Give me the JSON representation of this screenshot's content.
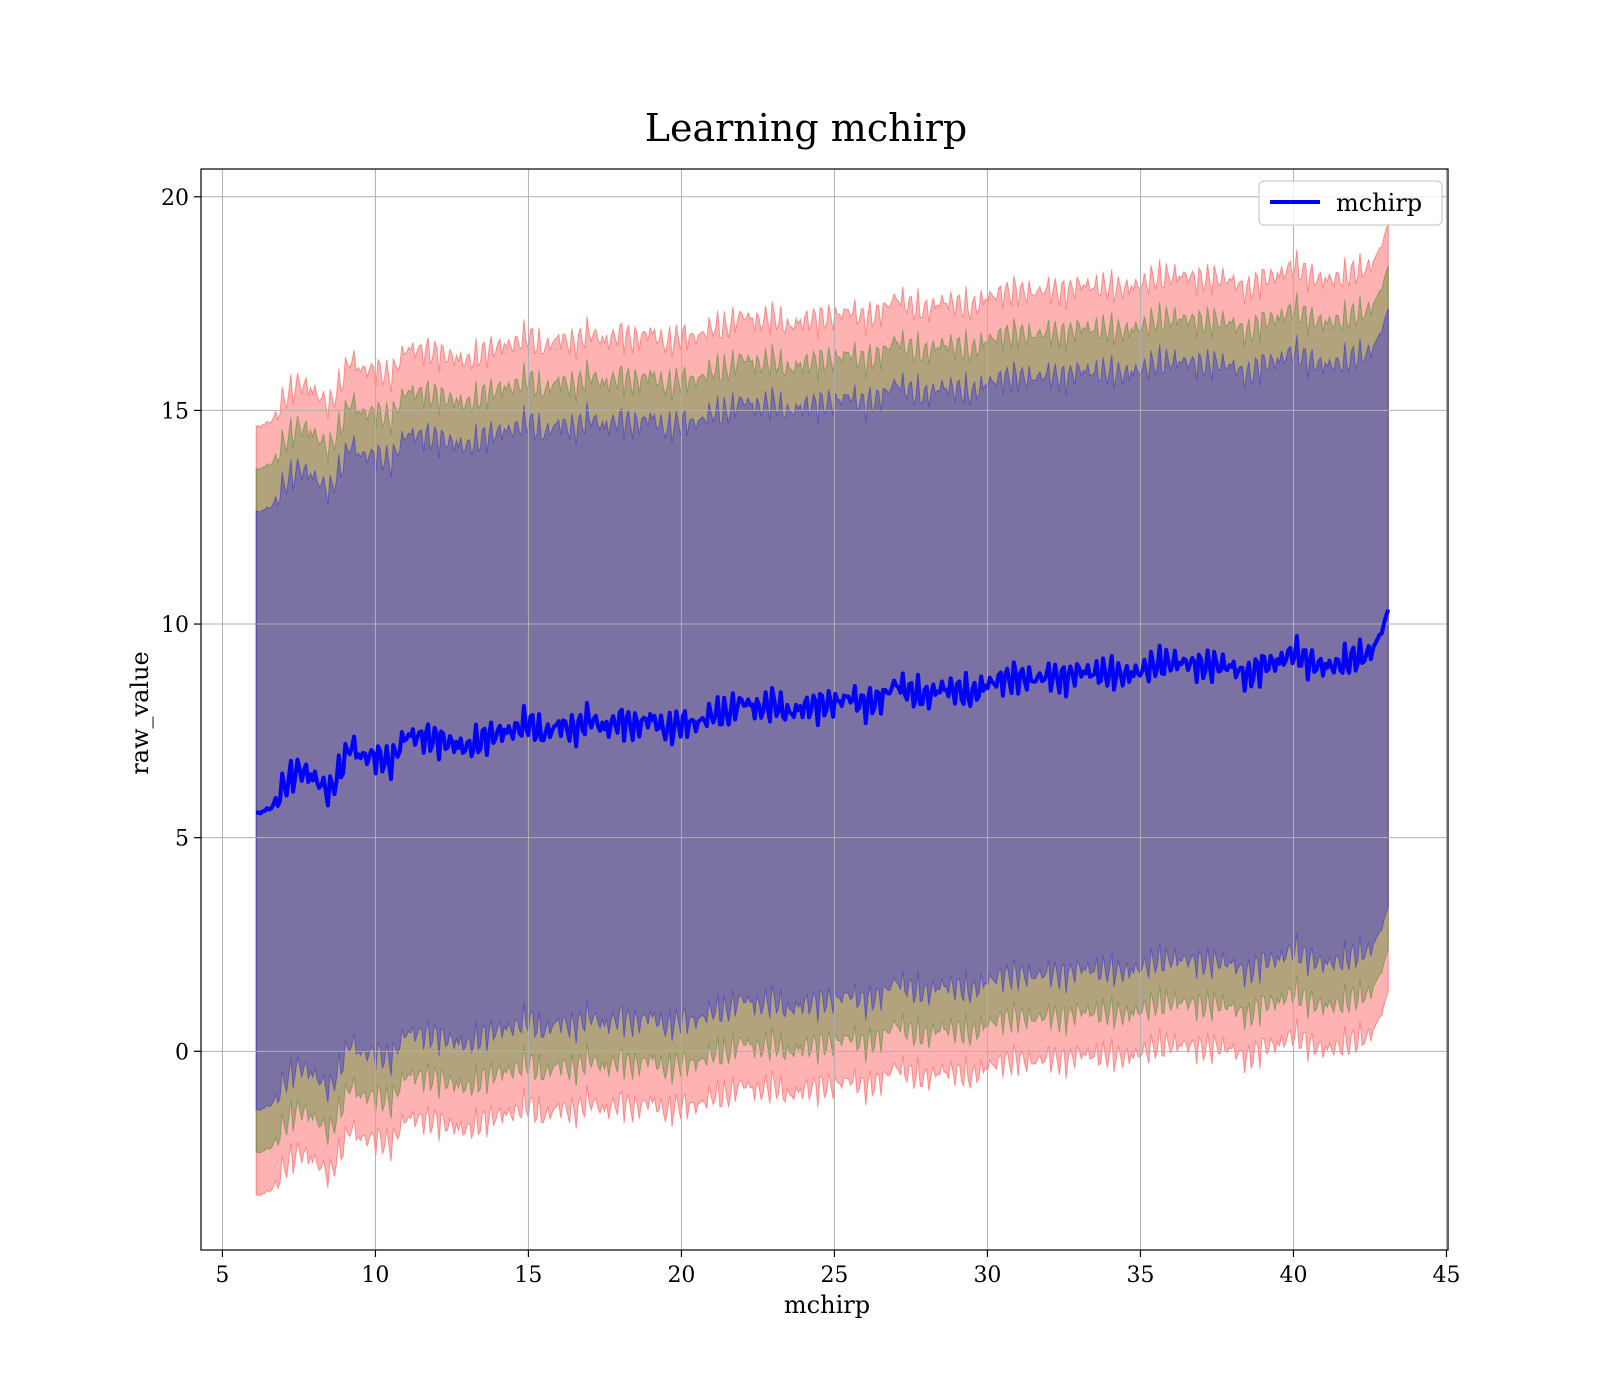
{
  "chart_data": {
    "type": "area",
    "title": "Learning mchirp",
    "xlabel": "mchirp",
    "ylabel": "raw_value",
    "xlim": [
      4.3,
      45.05
    ],
    "ylim": [
      -4.65,
      20.65
    ],
    "x_ticks": [
      5,
      10,
      15,
      20,
      25,
      30,
      35,
      40,
      45
    ],
    "y_ticks": [
      0,
      5,
      10,
      15,
      20
    ],
    "x_tick_labels": [
      "5",
      "10",
      "15",
      "20",
      "25",
      "30",
      "35",
      "40",
      "45"
    ],
    "y_tick_labels": [
      "0",
      "5",
      "10",
      "15",
      "20"
    ],
    "grid": true,
    "legend": {
      "position": "top-right",
      "entries": [
        "mchirp"
      ]
    },
    "x": [
      6.1,
      6.6,
      7.0,
      7.5,
      8.0,
      8.5,
      8.8,
      9.2,
      9.5,
      10.0,
      10.5,
      11.0,
      11.5,
      12.0,
      12.5,
      13.0,
      13.5,
      14.0,
      14.5,
      15.0,
      15.5,
      16.0,
      16.5,
      17.0,
      17.5,
      18.0,
      18.5,
      19.0,
      19.5,
      20.0,
      20.5,
      21.0,
      21.5,
      22.0,
      22.5,
      23.0,
      23.5,
      24.0,
      24.5,
      25.0,
      25.5,
      26.0,
      26.5,
      27.0,
      27.5,
      28.0,
      28.5,
      29.0,
      29.5,
      30.0,
      30.5,
      31.0,
      31.5,
      32.0,
      32.5,
      33.0,
      33.5,
      34.0,
      34.5,
      35.0,
      35.5,
      36.0,
      36.5,
      37.0,
      37.5,
      38.0,
      38.5,
      39.0,
      39.5,
      40.0,
      40.5,
      41.0,
      41.5,
      42.0,
      42.5,
      42.9,
      43.1
    ],
    "series": [
      {
        "name": "mchirp",
        "values": [
          5.55,
          5.7,
          6.2,
          6.6,
          6.4,
          6.05,
          6.5,
          7.2,
          6.9,
          6.9,
          6.75,
          7.4,
          7.35,
          7.3,
          7.2,
          7.1,
          7.3,
          7.45,
          7.5,
          7.7,
          7.4,
          7.65,
          7.5,
          7.8,
          7.55,
          7.75,
          7.6,
          7.8,
          7.5,
          7.7,
          7.65,
          7.9,
          7.9,
          8.2,
          8.0,
          8.15,
          7.9,
          8.05,
          8.1,
          8.15,
          8.3,
          8.1,
          8.25,
          8.6,
          8.4,
          8.3,
          8.5,
          8.45,
          8.35,
          8.6,
          8.7,
          8.75,
          8.7,
          8.8,
          8.7,
          8.9,
          8.85,
          8.85,
          8.8,
          8.9,
          9.05,
          9.1,
          9.1,
          9.0,
          9.05,
          9.0,
          8.75,
          9.05,
          9.1,
          9.35,
          9.1,
          9.0,
          9.05,
          9.2,
          9.3,
          9.85,
          10.35
        ]
      }
    ],
    "bands": [
      {
        "lower_offset": -8.95,
        "upper_offset": 9.05,
        "color": "#ff0000",
        "opacity": 0.3
      },
      {
        "lower_offset": -7.95,
        "upper_offset": 8.05,
        "color": "#008000",
        "opacity": 0.3
      },
      {
        "lower_offset": -6.95,
        "upper_offset": 7.05,
        "color": "#0000ff",
        "opacity": 0.3
      }
    ],
    "line_color": "#0000ff"
  }
}
